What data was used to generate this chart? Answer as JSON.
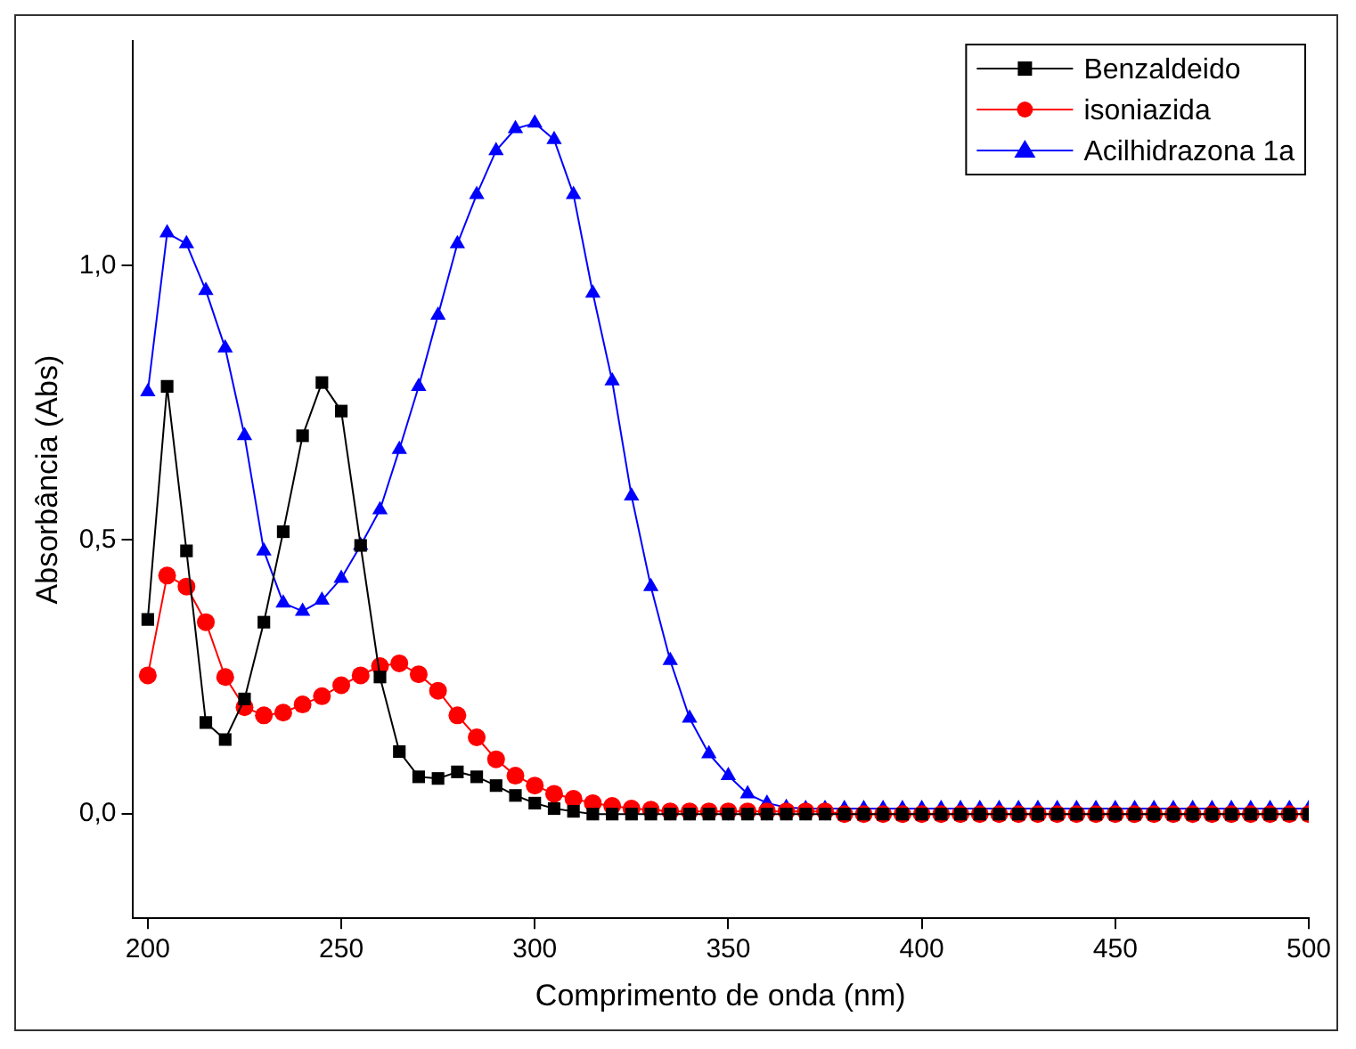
{
  "chart_data": {
    "type": "line",
    "xlabel": "Comprimento de onda (nm)",
    "ylabel": "Absorbância (Abs)",
    "x": [
      200,
      205,
      210,
      215,
      220,
      225,
      230,
      235,
      240,
      245,
      250,
      255,
      260,
      265,
      270,
      275,
      280,
      285,
      290,
      295,
      300,
      305,
      310,
      315,
      320,
      325,
      330,
      335,
      340,
      345,
      350,
      355,
      360,
      365,
      370,
      375,
      380,
      385,
      390,
      395,
      400,
      405,
      410,
      415,
      420,
      425,
      430,
      435,
      440,
      445,
      450,
      455,
      460,
      465,
      470,
      475,
      480,
      485,
      490,
      495,
      500
    ],
    "xlim": [
      196,
      500
    ],
    "xticks": [
      200,
      250,
      300,
      350,
      400,
      450,
      500
    ],
    "ylim": [
      -0.19,
      1.41
    ],
    "yticks": [
      {
        "value": 0,
        "label": "0,0"
      },
      {
        "value": 0.5,
        "label": "0,5"
      },
      {
        "value": 1,
        "label": "1,0"
      }
    ],
    "grid": false,
    "legend": "top right",
    "series": [
      {
        "name": "Benzaldeido",
        "color": "#000000",
        "marker": "square",
        "values": [
          0.355,
          0.78,
          0.48,
          0.167,
          0.136,
          0.21,
          0.35,
          0.515,
          0.69,
          0.787,
          0.735,
          0.49,
          0.25,
          0.114,
          0.068,
          0.065,
          0.077,
          0.068,
          0.052,
          0.034,
          0.02,
          0.01,
          0.005,
          0,
          0,
          0,
          0,
          0,
          0,
          0,
          0,
          0,
          0,
          0,
          0,
          0,
          0,
          0,
          0,
          0,
          0,
          0,
          0,
          0,
          0,
          0,
          0,
          0,
          0,
          0,
          0,
          0,
          0,
          0,
          0,
          0,
          0,
          0,
          0,
          0,
          0
        ]
      },
      {
        "name": "isoniazida",
        "color": "#ff0000",
        "marker": "circle",
        "values": [
          0.253,
          0.435,
          0.415,
          0.35,
          0.25,
          0.195,
          0.18,
          0.185,
          0.2,
          0.215,
          0.235,
          0.253,
          0.27,
          0.275,
          0.255,
          0.225,
          0.18,
          0.14,
          0.1,
          0.07,
          0.052,
          0.037,
          0.028,
          0.02,
          0.015,
          0.01,
          0.008,
          0.005,
          0.005,
          0.005,
          0.005,
          0.005,
          0.005,
          0.005,
          0.005,
          0.005,
          0,
          0,
          0,
          0,
          0,
          0,
          0,
          0,
          0,
          0,
          0,
          0,
          0,
          0,
          0,
          0,
          0,
          0,
          0,
          0,
          0,
          0,
          0,
          0,
          0
        ]
      },
      {
        "name": "Acilhidrazona 1a",
        "color": "#0000ff",
        "marker": "triangle",
        "values": [
          0.77,
          1.06,
          1.04,
          0.955,
          0.85,
          0.69,
          0.48,
          0.385,
          0.37,
          0.39,
          0.43,
          0.49,
          0.555,
          0.665,
          0.78,
          0.91,
          1.04,
          1.13,
          1.21,
          1.25,
          1.26,
          1.23,
          1.13,
          0.95,
          0.79,
          0.58,
          0.415,
          0.28,
          0.175,
          0.11,
          0.07,
          0.037,
          0.02,
          0.012,
          0.01,
          0.01,
          0.01,
          0.01,
          0.01,
          0.01,
          0.01,
          0.01,
          0.01,
          0.01,
          0.01,
          0.01,
          0.01,
          0.01,
          0.01,
          0.01,
          0.01,
          0.01,
          0.01,
          0.01,
          0.01,
          0.01,
          0.01,
          0.01,
          0.01,
          0.01,
          0.01
        ]
      }
    ]
  }
}
